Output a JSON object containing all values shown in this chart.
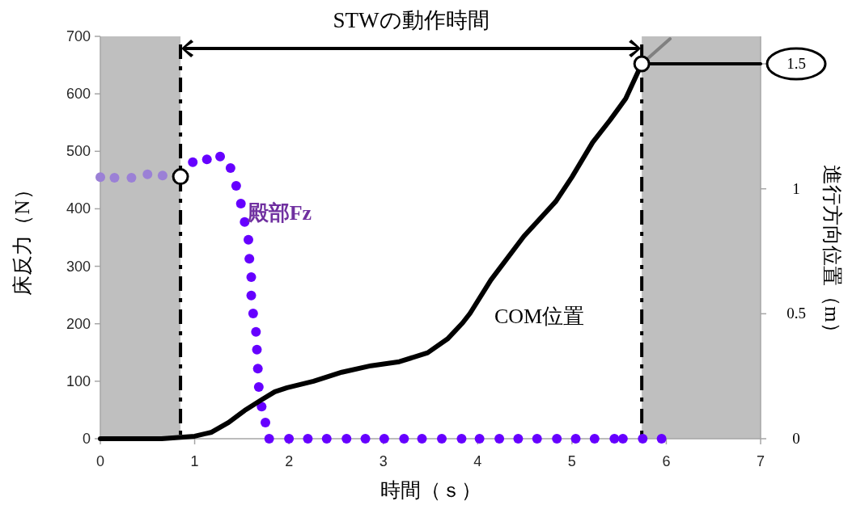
{
  "chart_data": {
    "type": "scatter",
    "xlabel": "時間（ｓ）",
    "ylabel": "床反力（N）",
    "y2label": "進行方向位置（m）",
    "xlim": [
      0,
      7
    ],
    "xticks": [
      0,
      1,
      2,
      3,
      4,
      5,
      6,
      7
    ],
    "ylim": [
      0,
      700
    ],
    "yticks": [
      0,
      100,
      200,
      300,
      400,
      500,
      600,
      700
    ],
    "y2lim": [
      0,
      1.61
    ],
    "y2ticks": [
      0,
      0.5,
      1,
      1.5
    ],
    "marker": "circle",
    "grid": false,
    "annotations": [
      "STWの動作時間"
    ],
    "bands": [
      {
        "axis": "x",
        "from": 0,
        "to": 0.85,
        "color": "#bfbfbf"
      },
      {
        "axis": "x",
        "from": 5.74,
        "to": 7,
        "color": "#bfbfbf"
      }
    ],
    "ref_lines": [
      {
        "axis": "x",
        "value": 0.85,
        "color": "#000000",
        "line_style": "dashdot"
      },
      {
        "axis": "x",
        "value": 5.74,
        "color": "#000000",
        "line_style": "dashdot"
      }
    ],
    "series": [
      {
        "name": "殿部Fz",
        "type": "scatter",
        "x": [
          0,
          0.15,
          0.33,
          0.5,
          0.66,
          0.98,
          1.13,
          1.27,
          1.38,
          1.44,
          1.49,
          1.53,
          1.57,
          1.58,
          1.6,
          1.6,
          1.62,
          1.65,
          1.66,
          1.67,
          1.68,
          1.71,
          1.75,
          1.79,
          2,
          2.2,
          2.4,
          2.61,
          2.81,
          3.01,
          3.22,
          3.41,
          3.62,
          3.83,
          4.02,
          4.23,
          4.43,
          4.63,
          4.84,
          5.04,
          5.24,
          5.45,
          5.54,
          5.75,
          5.95
        ],
        "values": [
          455,
          454,
          454,
          460,
          458,
          481,
          486,
          491,
          471,
          440,
          409,
          377,
          346,
          313,
          281,
          249,
          218,
          186,
          155,
          122,
          90,
          56,
          28,
          0,
          0,
          0,
          0,
          0,
          0,
          0,
          0,
          0,
          0,
          0,
          0,
          0,
          0,
          0,
          0,
          0,
          0,
          0,
          0,
          0,
          0
        ],
        "colors": [
          "#9b80d6",
          "#9b80d6",
          "#9b80d6",
          "#9b80d6",
          "#9b80d6",
          "#6600ff",
          "#6600ff",
          "#6600ff",
          "#6600ff",
          "#6600ff",
          "#6600ff",
          "#6600ff",
          "#6600ff",
          "#6600ff",
          "#6600ff",
          "#6600ff",
          "#6600ff",
          "#6600ff",
          "#6600ff",
          "#6600ff",
          "#6600ff",
          "#6600ff",
          "#6600ff",
          "#6600ff",
          "#6600ff",
          "#6600ff",
          "#6600ff",
          "#6600ff",
          "#6600ff",
          "#6600ff",
          "#6600ff",
          "#6600ff",
          "#6600ff",
          "#6600ff",
          "#6600ff",
          "#6600ff",
          "#6600ff",
          "#6600ff",
          "#6600ff",
          "#6600ff",
          "#6600ff",
          "#6600ff",
          "#6600ff",
          "#6600ff",
          "#6600ff"
        ]
      },
      {
        "name": "COM位置",
        "type": "line",
        "axis": "y2",
        "color": "#000000",
        "marker": "none",
        "x": [
          0,
          0.65,
          1,
          1.18,
          1.36,
          1.53,
          1.71,
          1.85,
          1.98,
          2.26,
          2.56,
          2.87,
          3.17,
          3.47,
          3.68,
          3.84,
          3.92,
          4.14,
          4.49,
          4.83,
          5,
          5.22,
          5.4,
          5.57,
          5.74
        ],
        "values": [
          0,
          0,
          0.01,
          0.026,
          0.065,
          0.113,
          0.156,
          0.188,
          0.204,
          0.23,
          0.266,
          0.292,
          0.308,
          0.344,
          0.399,
          0.463,
          0.502,
          0.635,
          0.81,
          0.95,
          1.047,
          1.186,
          1.273,
          1.361,
          1.5
        ]
      },
      {
        "type": "line",
        "axis": "y2",
        "color": "#808080",
        "marker": "none",
        "x": [
          5.74,
          6.04
        ],
        "values": [
          1.5,
          1.6
        ]
      },
      {
        "type": "line",
        "axis": "y2",
        "color": "#000000",
        "marker": "none",
        "x": [
          5.74,
          7
        ],
        "values": [
          1.5,
          1.5
        ]
      },
      {
        "color": "#ffffff",
        "x": [
          0.85
        ],
        "values": [
          456
        ]
      },
      {
        "axis": "y2",
        "color": "#ffffff",
        "x": [
          5.74
        ],
        "values": [
          1.5
        ]
      }
    ]
  }
}
